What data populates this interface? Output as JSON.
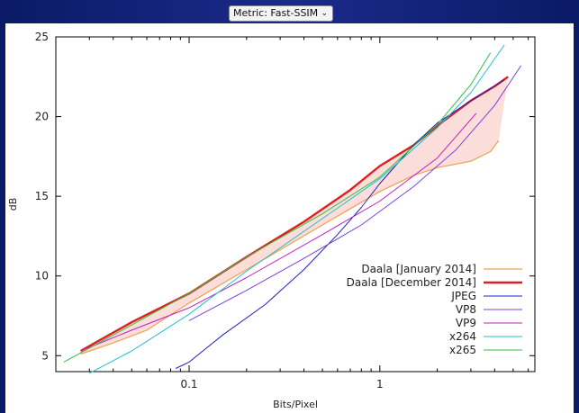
{
  "metric_select": {
    "label": "Metric: Fast-SSIM"
  },
  "chart_data": {
    "type": "line",
    "title": "",
    "xlabel": "Bits/Pixel",
    "ylabel": "dB",
    "xscale": "log",
    "xlim": [
      0.02,
      6.5
    ],
    "ylim": [
      4,
      25
    ],
    "xticks": [
      0.1,
      1
    ],
    "xtick_labels": [
      "0.1",
      "1"
    ],
    "yticks": [
      5,
      10,
      15,
      20,
      25
    ],
    "ytick_labels": [
      "5",
      "10",
      "15",
      "20",
      "25"
    ],
    "grid": false,
    "legend_position": "bottom-right",
    "shaded_region": "between Daala [January 2014] and Daala [December 2014]",
    "series": [
      {
        "name": "Daala [January 2014]",
        "color": "#f0a050",
        "width": 1.2,
        "x": [
          0.027,
          0.04,
          0.06,
          0.1,
          0.2,
          0.5,
          1.0,
          1.5,
          2.0,
          3.0,
          3.8,
          4.2
        ],
        "y": [
          5.1,
          5.8,
          6.6,
          8.3,
          10.4,
          13.2,
          15.3,
          16.3,
          16.8,
          17.2,
          17.8,
          18.5
        ]
      },
      {
        "name": "Daala [December 2014]",
        "color": "#e02020",
        "width": 2.4,
        "x": [
          0.027,
          0.05,
          0.1,
          0.2,
          0.4,
          0.7,
          1.0,
          1.5,
          2.2,
          3.0,
          4.0,
          4.7
        ],
        "y": [
          5.3,
          7.1,
          8.9,
          11.2,
          13.4,
          15.4,
          16.9,
          18.2,
          19.8,
          21.0,
          21.9,
          22.5
        ]
      },
      {
        "name": "JPEG",
        "color": "#2020c0",
        "width": 1.0,
        "x": [
          0.085,
          0.1,
          0.15,
          0.25,
          0.4,
          0.6,
          0.8,
          1.0,
          1.5,
          2.0,
          3.0,
          4.5
        ],
        "y": [
          4.2,
          4.6,
          6.3,
          8.2,
          10.4,
          12.6,
          14.3,
          15.8,
          18.2,
          19.6,
          21.0,
          22.3
        ]
      },
      {
        "name": "VP8",
        "color": "#8040e0",
        "width": 1.0,
        "x": [
          0.1,
          0.2,
          0.4,
          0.8,
          1.5,
          2.5,
          4.0,
          5.5
        ],
        "y": [
          7.2,
          9.1,
          11.1,
          13.2,
          15.6,
          17.9,
          20.7,
          23.2
        ]
      },
      {
        "name": "VP9",
        "color": "#c020c0",
        "width": 1.0,
        "x": [
          0.027,
          0.05,
          0.1,
          0.2,
          0.5,
          1.0,
          2.0,
          3.2
        ],
        "y": [
          5.3,
          6.6,
          8.0,
          9.9,
          12.6,
          14.7,
          17.4,
          20.2
        ]
      },
      {
        "name": "x264",
        "color": "#20c0d0",
        "width": 1.0,
        "x": [
          0.03,
          0.05,
          0.1,
          0.2,
          0.5,
          1.0,
          2.0,
          3.0,
          4.5
        ],
        "y": [
          3.9,
          5.3,
          7.6,
          10.3,
          13.6,
          16.1,
          19.3,
          21.5,
          24.5
        ]
      },
      {
        "name": "x265",
        "color": "#30c040",
        "width": 1.0,
        "x": [
          0.022,
          0.04,
          0.1,
          0.2,
          0.5,
          1.0,
          2.0,
          3.0,
          3.8
        ],
        "y": [
          4.6,
          6.3,
          8.9,
          11.2,
          13.9,
          16.2,
          19.5,
          22.0,
          24.0
        ]
      }
    ]
  }
}
